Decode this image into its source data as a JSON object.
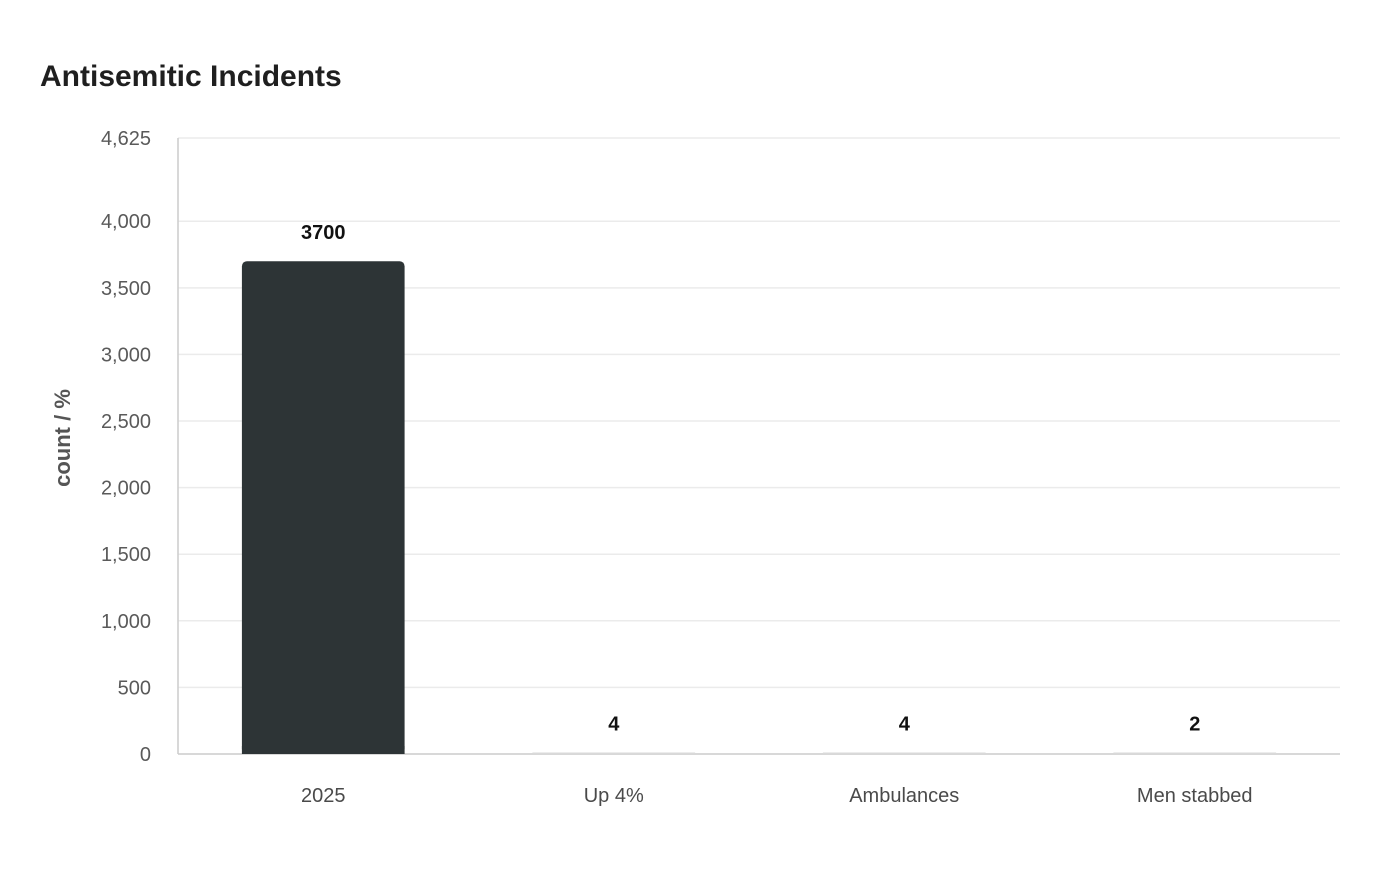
{
  "chart_data": {
    "type": "bar",
    "title": "Antisemitic Incidents",
    "xlabel": "",
    "ylabel": "count / %",
    "categories": [
      "2025",
      "Up 4%",
      "Ambulances",
      "Men stabbed"
    ],
    "values": [
      3700,
      4,
      4,
      2
    ],
    "data_labels": [
      "3700",
      "4",
      "4",
      "2"
    ],
    "ylim": [
      0,
      4625
    ],
    "yticks": [
      0,
      500,
      1000,
      1500,
      2000,
      2500,
      3000,
      3500,
      4000,
      4625
    ],
    "ytick_labels": [
      "0",
      "500",
      "1,000",
      "1,500",
      "2,000",
      "2,500",
      "3,000",
      "3,500",
      "4,000",
      "4,625"
    ],
    "grid": true,
    "legend": "none",
    "colors": {
      "highlight_bar": "#2d3436",
      "other_bar": "#d9d9d9",
      "grid": "#ebebeb",
      "axis": "#cccccc"
    }
  }
}
